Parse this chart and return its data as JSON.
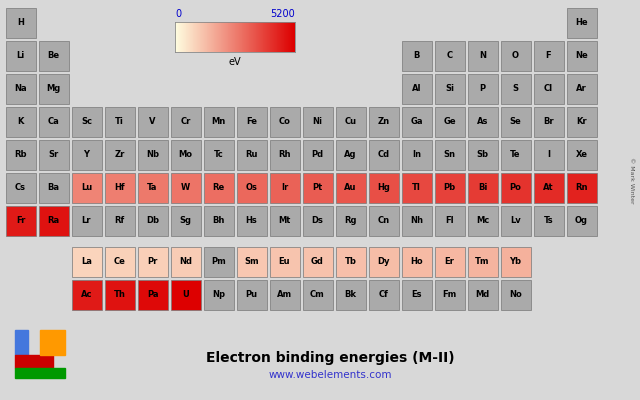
{
  "title": "Electron binding energies (M-II)",
  "url": "www.webelements.com",
  "colorbar_min": 0,
  "colorbar_max": 5200,
  "colorbar_label": "eV",
  "background_color": "#d8d8d8",
  "credit": "© Mark Winter",
  "elements": {
    "H": {
      "row": 0,
      "col": 0,
      "value": null
    },
    "He": {
      "row": 0,
      "col": 17,
      "value": null
    },
    "Li": {
      "row": 1,
      "col": 0,
      "value": null
    },
    "Be": {
      "row": 1,
      "col": 1,
      "value": null
    },
    "B": {
      "row": 1,
      "col": 12,
      "value": null
    },
    "C": {
      "row": 1,
      "col": 13,
      "value": null
    },
    "N": {
      "row": 1,
      "col": 14,
      "value": null
    },
    "O": {
      "row": 1,
      "col": 15,
      "value": null
    },
    "F": {
      "row": 1,
      "col": 16,
      "value": null
    },
    "Ne": {
      "row": 1,
      "col": 17,
      "value": null
    },
    "Na": {
      "row": 2,
      "col": 0,
      "value": null
    },
    "Mg": {
      "row": 2,
      "col": 1,
      "value": null
    },
    "Al": {
      "row": 2,
      "col": 12,
      "value": null
    },
    "Si": {
      "row": 2,
      "col": 13,
      "value": null
    },
    "P": {
      "row": 2,
      "col": 14,
      "value": null
    },
    "S": {
      "row": 2,
      "col": 15,
      "value": null
    },
    "Cl": {
      "row": 2,
      "col": 16,
      "value": null
    },
    "Ar": {
      "row": 2,
      "col": 17,
      "value": null
    },
    "K": {
      "row": 3,
      "col": 0,
      "value": null
    },
    "Ca": {
      "row": 3,
      "col": 1,
      "value": null
    },
    "Sc": {
      "row": 3,
      "col": 2,
      "value": null
    },
    "Ti": {
      "row": 3,
      "col": 3,
      "value": null
    },
    "V": {
      "row": 3,
      "col": 4,
      "value": null
    },
    "Cr": {
      "row": 3,
      "col": 5,
      "value": null
    },
    "Mn": {
      "row": 3,
      "col": 6,
      "value": null
    },
    "Fe": {
      "row": 3,
      "col": 7,
      "value": null
    },
    "Co": {
      "row": 3,
      "col": 8,
      "value": null
    },
    "Ni": {
      "row": 3,
      "col": 9,
      "value": null
    },
    "Cu": {
      "row": 3,
      "col": 10,
      "value": null
    },
    "Zn": {
      "row": 3,
      "col": 11,
      "value": null
    },
    "Ga": {
      "row": 3,
      "col": 12,
      "value": null
    },
    "Ge": {
      "row": 3,
      "col": 13,
      "value": null
    },
    "As": {
      "row": 3,
      "col": 14,
      "value": null
    },
    "Se": {
      "row": 3,
      "col": 15,
      "value": null
    },
    "Br": {
      "row": 3,
      "col": 16,
      "value": null
    },
    "Kr": {
      "row": 3,
      "col": 17,
      "value": null
    },
    "Rb": {
      "row": 4,
      "col": 0,
      "value": null
    },
    "Sr": {
      "row": 4,
      "col": 1,
      "value": null
    },
    "Y": {
      "row": 4,
      "col": 2,
      "value": null
    },
    "Zr": {
      "row": 4,
      "col": 3,
      "value": null
    },
    "Nb": {
      "row": 4,
      "col": 4,
      "value": null
    },
    "Mo": {
      "row": 4,
      "col": 5,
      "value": null
    },
    "Tc": {
      "row": 4,
      "col": 6,
      "value": null
    },
    "Ru": {
      "row": 4,
      "col": 7,
      "value": null
    },
    "Rh": {
      "row": 4,
      "col": 8,
      "value": null
    },
    "Pd": {
      "row": 4,
      "col": 9,
      "value": null
    },
    "Ag": {
      "row": 4,
      "col": 10,
      "value": null
    },
    "Cd": {
      "row": 4,
      "col": 11,
      "value": null
    },
    "In": {
      "row": 4,
      "col": 12,
      "value": null
    },
    "Sn": {
      "row": 4,
      "col": 13,
      "value": null
    },
    "Sb": {
      "row": 4,
      "col": 14,
      "value": null
    },
    "Te": {
      "row": 4,
      "col": 15,
      "value": null
    },
    "I": {
      "row": 4,
      "col": 16,
      "value": null
    },
    "Xe": {
      "row": 4,
      "col": 17,
      "value": null
    },
    "Cs": {
      "row": 5,
      "col": 0,
      "value": null
    },
    "Ba": {
      "row": 5,
      "col": 1,
      "value": null
    },
    "Lu": {
      "row": 5,
      "col": 2,
      "value": 2491
    },
    "Hf": {
      "row": 5,
      "col": 3,
      "value": 2601
    },
    "Ta": {
      "row": 5,
      "col": 4,
      "value": 2708
    },
    "W": {
      "row": 5,
      "col": 5,
      "value": 2820
    },
    "Re": {
      "row": 5,
      "col": 6,
      "value": 2932
    },
    "Os": {
      "row": 5,
      "col": 7,
      "value": 3049
    },
    "Ir": {
      "row": 5,
      "col": 8,
      "value": 3174
    },
    "Pt": {
      "row": 5,
      "col": 9,
      "value": 3296
    },
    "Au": {
      "row": 5,
      "col": 10,
      "value": 3425
    },
    "Hg": {
      "row": 5,
      "col": 11,
      "value": 3562
    },
    "Tl": {
      "row": 5,
      "col": 12,
      "value": 3704
    },
    "Pb": {
      "row": 5,
      "col": 13,
      "value": 3851
    },
    "Bi": {
      "row": 5,
      "col": 14,
      "value": 3999
    },
    "Po": {
      "row": 5,
      "col": 15,
      "value": 4149
    },
    "At": {
      "row": 5,
      "col": 16,
      "value": 4317
    },
    "Rn": {
      "row": 5,
      "col": 17,
      "value": 4490
    },
    "Fr": {
      "row": 6,
      "col": 0,
      "value": 4652
    },
    "Ra": {
      "row": 6,
      "col": 1,
      "value": 4822
    },
    "Lr": {
      "row": 6,
      "col": 2,
      "value": null
    },
    "Rf": {
      "row": 6,
      "col": 3,
      "value": null
    },
    "Db": {
      "row": 6,
      "col": 4,
      "value": null
    },
    "Sg": {
      "row": 6,
      "col": 5,
      "value": null
    },
    "Bh": {
      "row": 6,
      "col": 6,
      "value": null
    },
    "Hs": {
      "row": 6,
      "col": 7,
      "value": null
    },
    "Mt": {
      "row": 6,
      "col": 8,
      "value": null
    },
    "Ds": {
      "row": 6,
      "col": 9,
      "value": null
    },
    "Rg": {
      "row": 6,
      "col": 10,
      "value": null
    },
    "Cn": {
      "row": 6,
      "col": 11,
      "value": null
    },
    "Nh": {
      "row": 6,
      "col": 12,
      "value": null
    },
    "Fl": {
      "row": 6,
      "col": 13,
      "value": null
    },
    "Mc": {
      "row": 6,
      "col": 14,
      "value": null
    },
    "Lv": {
      "row": 6,
      "col": 15,
      "value": null
    },
    "Ts": {
      "row": 6,
      "col": 16,
      "value": null
    },
    "Og": {
      "row": 6,
      "col": 17,
      "value": null
    },
    "La": {
      "row": 8,
      "col": 2,
      "value": 836
    },
    "Ce": {
      "row": 8,
      "col": 3,
      "value": 902
    },
    "Pr": {
      "row": 8,
      "col": 4,
      "value": 948
    },
    "Nd": {
      "row": 8,
      "col": 5,
      "value": 1003
    },
    "Pm": {
      "row": 8,
      "col": 6,
      "value": null
    },
    "Sm": {
      "row": 8,
      "col": 7,
      "value": 1106
    },
    "Eu": {
      "row": 8,
      "col": 8,
      "value": 1161
    },
    "Gd": {
      "row": 8,
      "col": 9,
      "value": 1217
    },
    "Tb": {
      "row": 8,
      "col": 10,
      "value": 1276
    },
    "Dy": {
      "row": 8,
      "col": 11,
      "value": 1333
    },
    "Ho": {
      "row": 8,
      "col": 12,
      "value": 1392
    },
    "Er": {
      "row": 8,
      "col": 13,
      "value": 1453
    },
    "Tm": {
      "row": 8,
      "col": 14,
      "value": 1515
    },
    "Yb": {
      "row": 8,
      "col": 15,
      "value": 1576
    },
    "Ac": {
      "row": 9,
      "col": 2,
      "value": 4656
    },
    "Th": {
      "row": 9,
      "col": 3,
      "value": 4830
    },
    "Pa": {
      "row": 9,
      "col": 4,
      "value": 5001
    },
    "U": {
      "row": 9,
      "col": 5,
      "value": 5182
    },
    "Np": {
      "row": 9,
      "col": 6,
      "value": null
    },
    "Pu": {
      "row": 9,
      "col": 7,
      "value": null
    },
    "Am": {
      "row": 9,
      "col": 8,
      "value": null
    },
    "Cm": {
      "row": 9,
      "col": 9,
      "value": null
    },
    "Bk": {
      "row": 9,
      "col": 10,
      "value": null
    },
    "Cf": {
      "row": 9,
      "col": 11,
      "value": null
    },
    "Es": {
      "row": 9,
      "col": 12,
      "value": null
    },
    "Fm": {
      "row": 9,
      "col": 13,
      "value": null
    },
    "Md": {
      "row": 9,
      "col": 14,
      "value": null
    },
    "No": {
      "row": 9,
      "col": 15,
      "value": null
    }
  }
}
